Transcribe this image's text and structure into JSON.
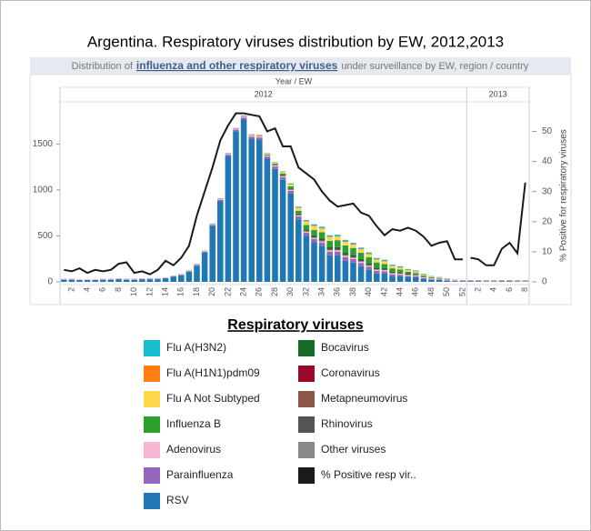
{
  "chart_data": {
    "type": "bar",
    "title": "Argentina. Respiratory viruses distribution by EW, 2012,2013",
    "subtitle": {
      "prefix": "Distribution of",
      "link": "influenza and other respiratory viruses",
      "suffix": "under surveillance by EW, region / country"
    },
    "x_header": "Year  /  EW",
    "groups": [
      {
        "label": "2012",
        "size": 52
      },
      {
        "label": "2013",
        "size": 8
      }
    ],
    "categories": [
      null,
      "2",
      null,
      "4",
      null,
      "6",
      null,
      "8",
      null,
      "10",
      null,
      "12",
      null,
      "14",
      null,
      "16",
      null,
      "18",
      null,
      "20",
      null,
      "22",
      null,
      "24",
      null,
      "26",
      null,
      "28",
      null,
      "30",
      null,
      "32",
      null,
      "34",
      null,
      "36",
      null,
      "38",
      null,
      "40",
      null,
      "42",
      null,
      "44",
      null,
      "46",
      null,
      "48",
      null,
      "50",
      null,
      "52",
      null,
      "2",
      null,
      "4",
      null,
      "6",
      null,
      "8"
    ],
    "y2_label": "% Positive for respiratory viruses",
    "legend_title": "Respiratory viruses",
    "ylim": [
      0,
      1900
    ],
    "yticks": [
      0,
      500,
      1000,
      1500
    ],
    "y2lim": [
      0,
      58
    ],
    "y2ticks": [
      0,
      10,
      20,
      30,
      40,
      50
    ],
    "series": [
      {
        "name": "Flu A(H3N2)",
        "color": "#17becf",
        "values": [
          1,
          1,
          1,
          1,
          1,
          1,
          1,
          1,
          1,
          1,
          1,
          1,
          1,
          1,
          1,
          1,
          1,
          1,
          1,
          2,
          2,
          2,
          2,
          3,
          3,
          3,
          3,
          4,
          5,
          6,
          8,
          10,
          12,
          12,
          12,
          14,
          14,
          12,
          12,
          12,
          12,
          12,
          10,
          10,
          8,
          8,
          6,
          5,
          4,
          3,
          2,
          1,
          1,
          1,
          1,
          1,
          1,
          1,
          1,
          1
        ]
      },
      {
        "name": "Flu A(H1N1)pdm09",
        "color": "#ff7f0e",
        "values": [
          0,
          0,
          0,
          0,
          0,
          0,
          0,
          0,
          0,
          0,
          0,
          0,
          0,
          0,
          0,
          0,
          0,
          0,
          0,
          0,
          0,
          0,
          0,
          0,
          0,
          0,
          0,
          0,
          2,
          3,
          4,
          5,
          6,
          6,
          6,
          6,
          6,
          6,
          5,
          5,
          5,
          5,
          4,
          4,
          3,
          3,
          2,
          2,
          1,
          1,
          1,
          0,
          0,
          0,
          0,
          0,
          0,
          0,
          0,
          0
        ]
      },
      {
        "name": "Flu A Not Subtyped",
        "color": "#ffd94a",
        "values": [
          0,
          0,
          0,
          0,
          0,
          0,
          0,
          0,
          0,
          0,
          0,
          0,
          0,
          0,
          0,
          0,
          0,
          0,
          0,
          0,
          0,
          0,
          0,
          0,
          5,
          8,
          10,
          12,
          15,
          20,
          30,
          35,
          40,
          40,
          40,
          38,
          38,
          35,
          35,
          32,
          30,
          28,
          25,
          20,
          18,
          15,
          10,
          6,
          4,
          2,
          1,
          1,
          0,
          0,
          0,
          0,
          0,
          0,
          0,
          0
        ]
      },
      {
        "name": "Influenza B",
        "color": "#2ca02c",
        "values": [
          0,
          0,
          0,
          0,
          0,
          0,
          0,
          0,
          0,
          0,
          0,
          0,
          0,
          0,
          0,
          0,
          0,
          0,
          0,
          0,
          0,
          0,
          0,
          0,
          0,
          0,
          5,
          10,
          15,
          20,
          30,
          50,
          60,
          70,
          70,
          75,
          80,
          75,
          70,
          65,
          55,
          45,
          35,
          28,
          20,
          15,
          10,
          6,
          4,
          2,
          1,
          1,
          0,
          0,
          0,
          0,
          0,
          0,
          0,
          0
        ]
      },
      {
        "name": "Adenovirus",
        "color": "#f7b6d2",
        "values": [
          4,
          4,
          4,
          4,
          4,
          4,
          4,
          4,
          4,
          4,
          4,
          5,
          5,
          5,
          5,
          6,
          6,
          6,
          8,
          8,
          10,
          10,
          10,
          12,
          12,
          12,
          12,
          12,
          12,
          12,
          12,
          12,
          12,
          12,
          14,
          14,
          14,
          14,
          14,
          12,
          12,
          12,
          12,
          12,
          12,
          10,
          10,
          10,
          8,
          8,
          6,
          5,
          3,
          3,
          3,
          3,
          3,
          3,
          3,
          3
        ]
      },
      {
        "name": "Parainfluenza",
        "color": "#9467bd",
        "values": [
          5,
          5,
          5,
          5,
          5,
          5,
          5,
          5,
          5,
          5,
          5,
          5,
          5,
          5,
          6,
          6,
          6,
          8,
          8,
          10,
          12,
          14,
          16,
          18,
          20,
          22,
          24,
          26,
          28,
          30,
          32,
          34,
          36,
          38,
          40,
          40,
          40,
          38,
          36,
          34,
          30,
          26,
          22,
          18,
          14,
          12,
          10,
          8,
          6,
          5,
          4,
          4,
          4,
          4,
          4,
          4,
          4,
          4,
          4,
          4
        ]
      },
      {
        "name": "RSV",
        "color": "#1f77b4",
        "values": [
          20,
          20,
          15,
          15,
          15,
          20,
          20,
          25,
          20,
          20,
          25,
          28,
          28,
          35,
          55,
          70,
          110,
          175,
          320,
          610,
          880,
          1370,
          1640,
          1770,
          1560,
          1550,
          1340,
          1230,
          1110,
          960,
          680,
          500,
          430,
          390,
          290,
          290,
          230,
          210,
          170,
          130,
          90,
          90,
          60,
          60,
          50,
          50,
          30,
          20,
          20,
          10,
          5,
          5,
          5,
          5,
          4,
          4,
          5,
          5,
          4,
          4
        ]
      },
      {
        "name": "Bocavirus",
        "color": "#1a6b28",
        "values": [
          0,
          0,
          0,
          0,
          0,
          0,
          0,
          0,
          0,
          0,
          0,
          0,
          0,
          0,
          0,
          0,
          0,
          0,
          0,
          0,
          0,
          0,
          0,
          0,
          0,
          0,
          0,
          3,
          5,
          8,
          10,
          12,
          15,
          18,
          20,
          22,
          22,
          22,
          20,
          20,
          18,
          16,
          14,
          12,
          10,
          8,
          6,
          4,
          3,
          2,
          1,
          1,
          1,
          1,
          1,
          1,
          1,
          1,
          1,
          1
        ]
      },
      {
        "name": "Coronavirus",
        "color": "#9b0a2b",
        "values": [
          0,
          0,
          0,
          0,
          0,
          0,
          0,
          0,
          0,
          0,
          0,
          0,
          0,
          0,
          0,
          0,
          0,
          0,
          0,
          0,
          0,
          0,
          0,
          0,
          0,
          0,
          0,
          0,
          0,
          1,
          1,
          1,
          1,
          1,
          1,
          1,
          1,
          1,
          1,
          1,
          0,
          0,
          0,
          0,
          0,
          0,
          0,
          0,
          0,
          0,
          0,
          0,
          0,
          0,
          0,
          0,
          0,
          0,
          0,
          0
        ]
      },
      {
        "name": "Metapneumovirus",
        "color": "#8c564b",
        "values": [
          0,
          0,
          0,
          0,
          0,
          0,
          0,
          0,
          0,
          0,
          0,
          0,
          0,
          0,
          0,
          1,
          1,
          2,
          2,
          3,
          3,
          4,
          4,
          5,
          5,
          5,
          6,
          6,
          8,
          10,
          10,
          12,
          12,
          12,
          12,
          12,
          10,
          10,
          8,
          8,
          6,
          6,
          4,
          4,
          3,
          2,
          2,
          1,
          1,
          1,
          1,
          1,
          1,
          1,
          1,
          1,
          1,
          1,
          1,
          1
        ]
      },
      {
        "name": "Rhinovirus",
        "color": "#555555",
        "values": [
          1,
          1,
          1,
          1,
          1,
          1,
          1,
          1,
          1,
          1,
          1,
          1,
          1,
          1,
          1,
          1,
          1,
          1,
          1,
          1,
          1,
          1,
          1,
          1,
          1,
          1,
          1,
          1,
          1,
          1,
          1,
          1,
          1,
          1,
          1,
          1,
          1,
          1,
          1,
          1,
          1,
          1,
          1,
          1,
          1,
          1,
          1,
          1,
          1,
          1,
          1,
          1,
          2,
          2,
          2,
          2,
          2,
          2,
          2,
          2
        ]
      },
      {
        "name": "Other viruses",
        "color": "#888888",
        "values": [
          1,
          1,
          1,
          1,
          1,
          1,
          1,
          1,
          1,
          1,
          1,
          1,
          1,
          1,
          1,
          1,
          1,
          1,
          1,
          1,
          1,
          1,
          1,
          1,
          1,
          1,
          1,
          1,
          1,
          1,
          1,
          1,
          1,
          1,
          1,
          1,
          1,
          1,
          1,
          1,
          1,
          1,
          1,
          1,
          1,
          1,
          1,
          1,
          1,
          1,
          1,
          1,
          1,
          1,
          1,
          1,
          1,
          1,
          1,
          1
        ]
      },
      {
        "name": "% Positive resp vir..",
        "color": "#1a1a1a",
        "type": "line",
        "axis": "y2",
        "values": [
          4,
          3.5,
          4.5,
          3,
          4,
          3.5,
          4,
          6,
          6.5,
          3,
          3.5,
          2.5,
          4,
          7,
          5.5,
          8,
          12,
          22,
          30,
          38,
          47,
          52,
          56,
          56,
          55.5,
          55,
          50,
          51,
          45,
          45,
          38,
          36,
          34,
          30,
          27,
          25,
          25.5,
          26,
          23,
          22,
          18.5,
          15.5,
          17.5,
          17,
          18,
          17,
          15,
          12,
          13,
          13.5,
          7.5,
          7.5,
          8,
          7.5,
          5.5,
          5.5,
          11,
          13,
          9.5,
          33
        ]
      }
    ]
  }
}
